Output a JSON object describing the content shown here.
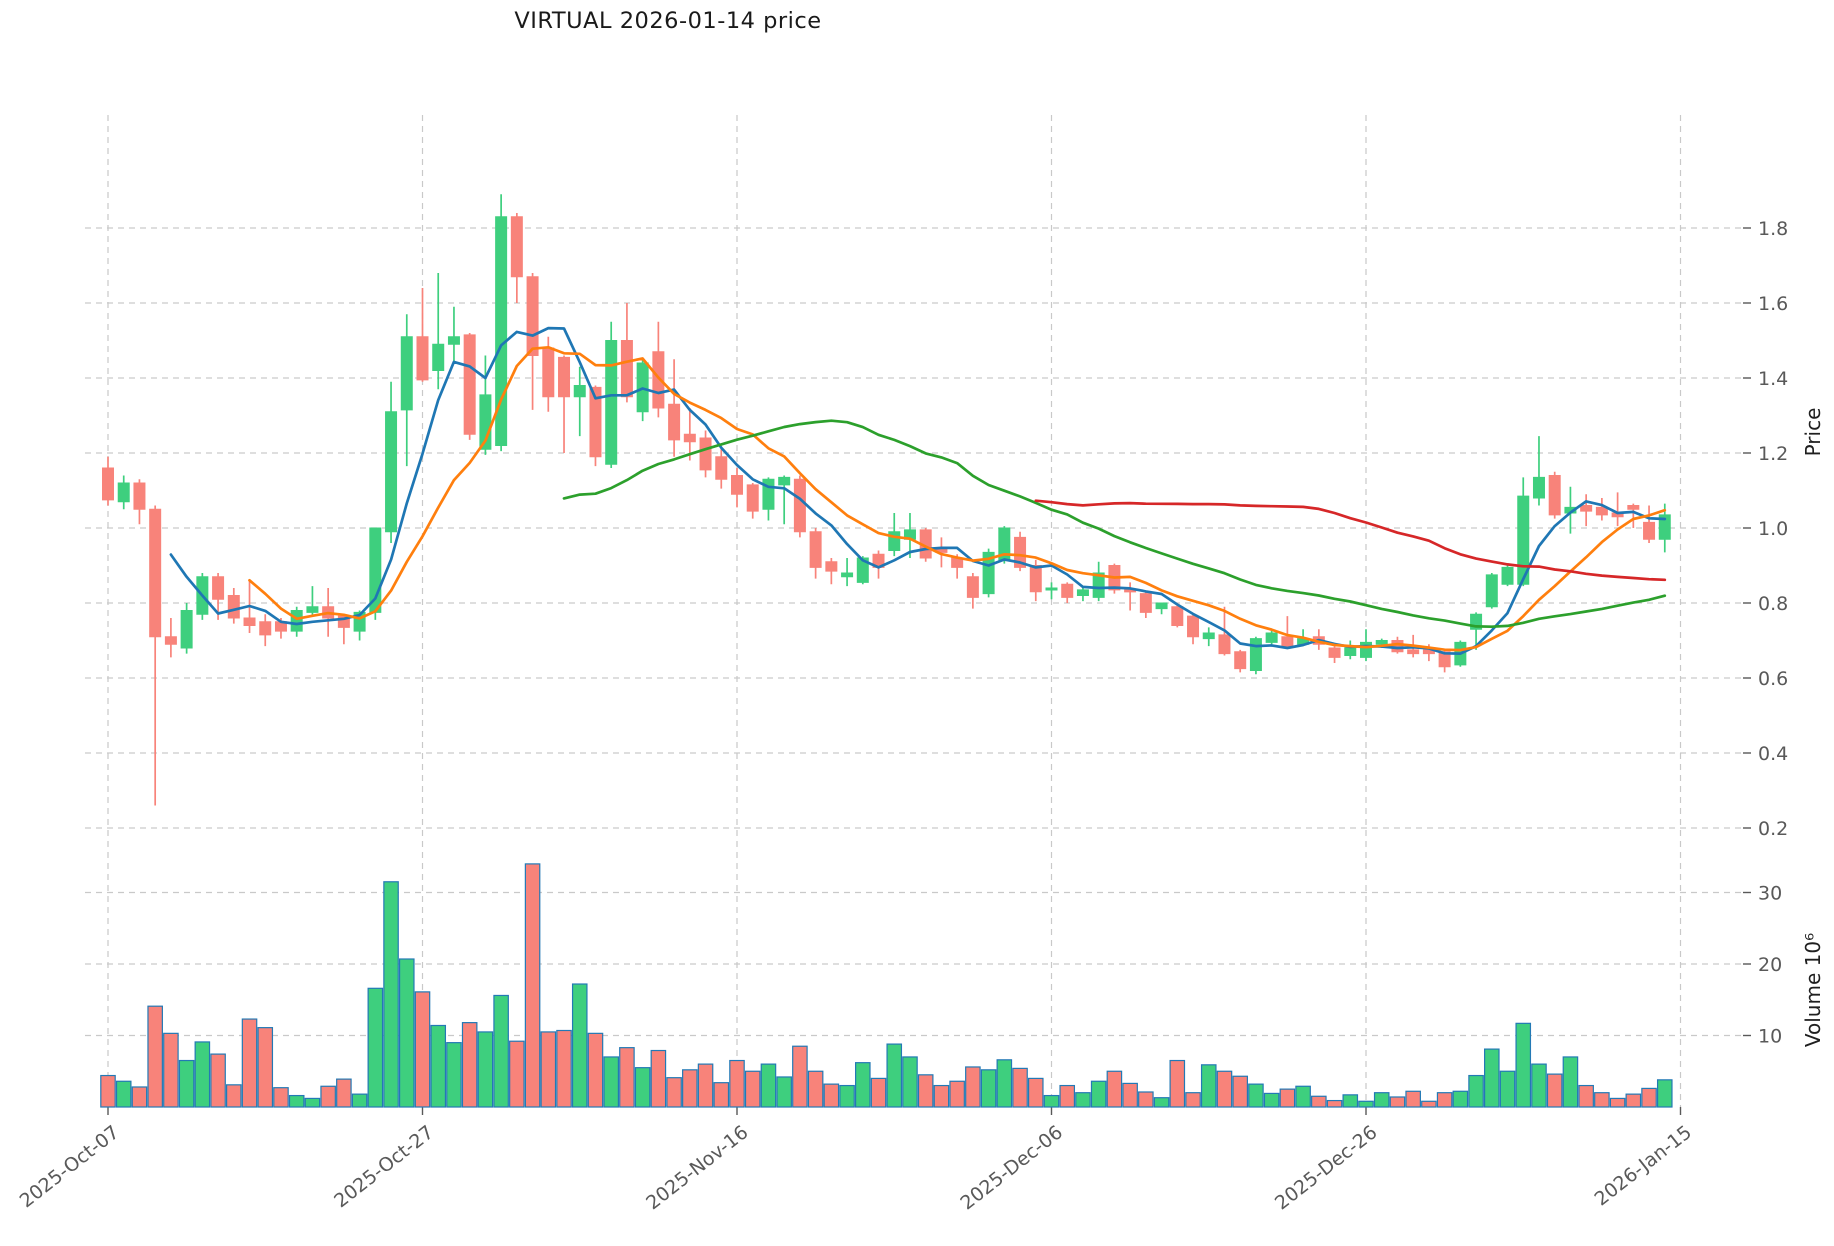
{
  "chart_data": {
    "type": "candlestick",
    "title": "VIRTUAL  2026-01-14  price",
    "ylabel_price": "Price",
    "ylabel_volume": "Volume  10⁶",
    "grid": true,
    "legend_position": "none",
    "price_axis_side": "right",
    "price_ticks": [
      1.8,
      1.6,
      1.4,
      1.2,
      1.0,
      0.8,
      0.6,
      0.4,
      0.2
    ],
    "volume_ticks_millions": [
      30,
      20,
      10
    ],
    "price_ylim": [
      0.13,
      1.97
    ],
    "volume_ylim_millions": [
      0,
      34.8
    ],
    "x_tick_labels": [
      {
        "label": "2025-Oct-07",
        "day": 0
      },
      {
        "label": "2025-Oct-27",
        "day": 20
      },
      {
        "label": "2025-Nov-16",
        "day": 40
      },
      {
        "label": "2025-Dec-06",
        "day": 60
      },
      {
        "label": "2025-Dec-26",
        "day": 80
      },
      {
        "label": "2026-Jan-15",
        "day": 100
      }
    ],
    "frequency": "daily",
    "num_candles": 100,
    "mav_windows": [
      5,
      10,
      30,
      60
    ],
    "mav_colors": [
      "#1f77b4",
      "#ff7f0e",
      "#2ca02c",
      "#d62728"
    ],
    "colors": {
      "up": "#3ecf7e",
      "down": "#f8837a",
      "volume_edge": "#2379b5",
      "grid": "#c9c9c9",
      "tick_text": "#595959",
      "title_text": "#1a1a1a"
    },
    "open": [
      1.16,
      1.07,
      1.12,
      1.05,
      0.71,
      0.68,
      0.77,
      0.87,
      0.82,
      0.76,
      0.75,
      0.75,
      0.725,
      0.775,
      0.79,
      0.765,
      0.725,
      0.775,
      0.99,
      1.315,
      1.51,
      1.42,
      1.49,
      1.515,
      1.21,
      1.22,
      1.83,
      1.67,
      1.48,
      1.455,
      1.35,
      1.375,
      1.17,
      1.5,
      1.31,
      1.47,
      1.33,
      1.25,
      1.24,
      1.19,
      1.14,
      1.115,
      1.05,
      1.115,
      1.13,
      0.99,
      0.91,
      0.87,
      0.855,
      0.93,
      0.94,
      0.97,
      0.995,
      0.945,
      0.92,
      0.87,
      0.825,
      0.915,
      0.975,
      0.9,
      0.835,
      0.85,
      0.82,
      0.815,
      0.9,
      0.835,
      0.825,
      0.785,
      0.79,
      0.765,
      0.705,
      0.715,
      0.67,
      0.62,
      0.695,
      0.71,
      0.69,
      0.71,
      0.68,
      0.66,
      0.655,
      0.69,
      0.7,
      0.675,
      0.675,
      0.67,
      0.635,
      0.73,
      0.79,
      0.85,
      0.85,
      1.08,
      1.14,
      1.04,
      1.06,
      1.055,
      1.04,
      1.06,
      1.015,
      0.97
    ],
    "high": [
      1.19,
      1.14,
      1.13,
      1.06,
      0.76,
      0.8,
      0.88,
      0.88,
      0.84,
      0.86,
      0.77,
      0.76,
      0.79,
      0.845,
      0.84,
      0.77,
      0.78,
      1.0,
      1.39,
      1.57,
      1.64,
      1.68,
      1.59,
      1.52,
      1.46,
      1.89,
      1.84,
      1.68,
      1.51,
      1.46,
      1.43,
      1.38,
      1.55,
      1.6,
      1.45,
      1.55,
      1.45,
      1.32,
      1.26,
      1.21,
      1.16,
      1.12,
      1.135,
      1.14,
      1.14,
      1.0,
      0.92,
      0.92,
      0.925,
      0.94,
      1.04,
      1.04,
      1.0,
      0.975,
      0.93,
      0.88,
      0.945,
      1.005,
      0.99,
      0.915,
      0.855,
      0.855,
      0.84,
      0.91,
      0.905,
      0.855,
      0.83,
      0.8,
      0.795,
      0.77,
      0.735,
      0.79,
      0.675,
      0.71,
      0.73,
      0.765,
      0.73,
      0.73,
      0.685,
      0.7,
      0.73,
      0.705,
      0.71,
      0.715,
      0.69,
      0.675,
      0.7,
      0.775,
      0.88,
      0.9,
      1.135,
      1.245,
      1.15,
      1.11,
      1.09,
      1.08,
      1.095,
      1.065,
      1.06,
      1.065
    ],
    "low": [
      1.06,
      1.05,
      1.01,
      0.26,
      0.655,
      0.665,
      0.755,
      0.755,
      0.745,
      0.72,
      0.685,
      0.705,
      0.71,
      0.765,
      0.71,
      0.69,
      0.7,
      0.755,
      0.96,
      1.165,
      1.39,
      1.37,
      1.445,
      1.235,
      1.195,
      1.205,
      1.6,
      1.315,
      1.31,
      1.2,
      1.245,
      1.165,
      1.16,
      1.335,
      1.285,
      1.295,
      1.19,
      1.18,
      1.135,
      1.105,
      1.055,
      1.025,
      1.02,
      1.01,
      0.975,
      0.865,
      0.85,
      0.845,
      0.85,
      0.865,
      0.925,
      0.92,
      0.91,
      0.895,
      0.865,
      0.785,
      0.815,
      0.905,
      0.885,
      0.805,
      0.81,
      0.8,
      0.805,
      0.805,
      0.825,
      0.78,
      0.76,
      0.77,
      0.735,
      0.69,
      0.685,
      0.66,
      0.615,
      0.61,
      0.69,
      0.68,
      0.685,
      0.675,
      0.64,
      0.65,
      0.645,
      0.68,
      0.665,
      0.655,
      0.645,
      0.615,
      0.63,
      0.675,
      0.785,
      0.845,
      0.845,
      1.06,
      1.025,
      0.985,
      1.005,
      1.02,
      1.005,
      1.0,
      0.96,
      0.935
    ],
    "close": [
      1.075,
      1.12,
      1.05,
      0.71,
      0.69,
      0.78,
      0.87,
      0.81,
      0.76,
      0.74,
      0.715,
      0.725,
      0.78,
      0.79,
      0.76,
      0.735,
      0.775,
      1.0,
      1.31,
      1.51,
      1.395,
      1.49,
      1.51,
      1.25,
      1.355,
      1.83,
      1.67,
      1.46,
      1.35,
      1.35,
      1.38,
      1.19,
      1.5,
      1.35,
      1.44,
      1.32,
      1.235,
      1.23,
      1.155,
      1.13,
      1.09,
      1.045,
      1.13,
      1.135,
      0.99,
      0.895,
      0.885,
      0.88,
      0.92,
      0.895,
      0.99,
      0.995,
      0.92,
      0.935,
      0.895,
      0.815,
      0.935,
      1.0,
      0.895,
      0.83,
      0.84,
      0.815,
      0.835,
      0.88,
      0.835,
      0.83,
      0.775,
      0.8,
      0.74,
      0.71,
      0.72,
      0.665,
      0.625,
      0.705,
      0.72,
      0.685,
      0.705,
      0.69,
      0.655,
      0.68,
      0.695,
      0.7,
      0.67,
      0.665,
      0.665,
      0.63,
      0.695,
      0.77,
      0.875,
      0.895,
      1.085,
      1.135,
      1.035,
      1.055,
      1.045,
      1.035,
      1.03,
      1.05,
      0.97,
      1.035
    ],
    "volume_millions": [
      4.4,
      3.6,
      2.8,
      14.1,
      10.3,
      6.5,
      9.1,
      7.4,
      3.1,
      12.3,
      11.1,
      2.7,
      1.6,
      1.2,
      2.9,
      3.9,
      1.8,
      16.6,
      31.5,
      20.7,
      16.1,
      11.4,
      9.0,
      11.8,
      10.5,
      15.6,
      9.2,
      34.0,
      10.5,
      10.7,
      17.2,
      10.3,
      7.0,
      8.3,
      5.5,
      7.9,
      4.1,
      5.2,
      6.0,
      3.4,
      6.5,
      5.0,
      6.0,
      4.2,
      8.5,
      5.0,
      3.2,
      3.0,
      6.2,
      4.0,
      8.8,
      7.0,
      4.5,
      3.0,
      3.6,
      5.6,
      5.2,
      6.6,
      5.4,
      4.0,
      1.6,
      3.0,
      2.0,
      3.6,
      5.0,
      3.3,
      2.1,
      1.3,
      6.5,
      2.0,
      5.9,
      5.0,
      4.3,
      3.2,
      1.9,
      2.5,
      2.9,
      1.5,
      0.9,
      1.7,
      0.8,
      2.0,
      1.4,
      2.2,
      0.8,
      2.0,
      2.2,
      4.4,
      8.1,
      5.0,
      11.7,
      6.0,
      4.6,
      7.0,
      3.0,
      2.0,
      1.2,
      1.8,
      2.6,
      3.8
    ]
  }
}
